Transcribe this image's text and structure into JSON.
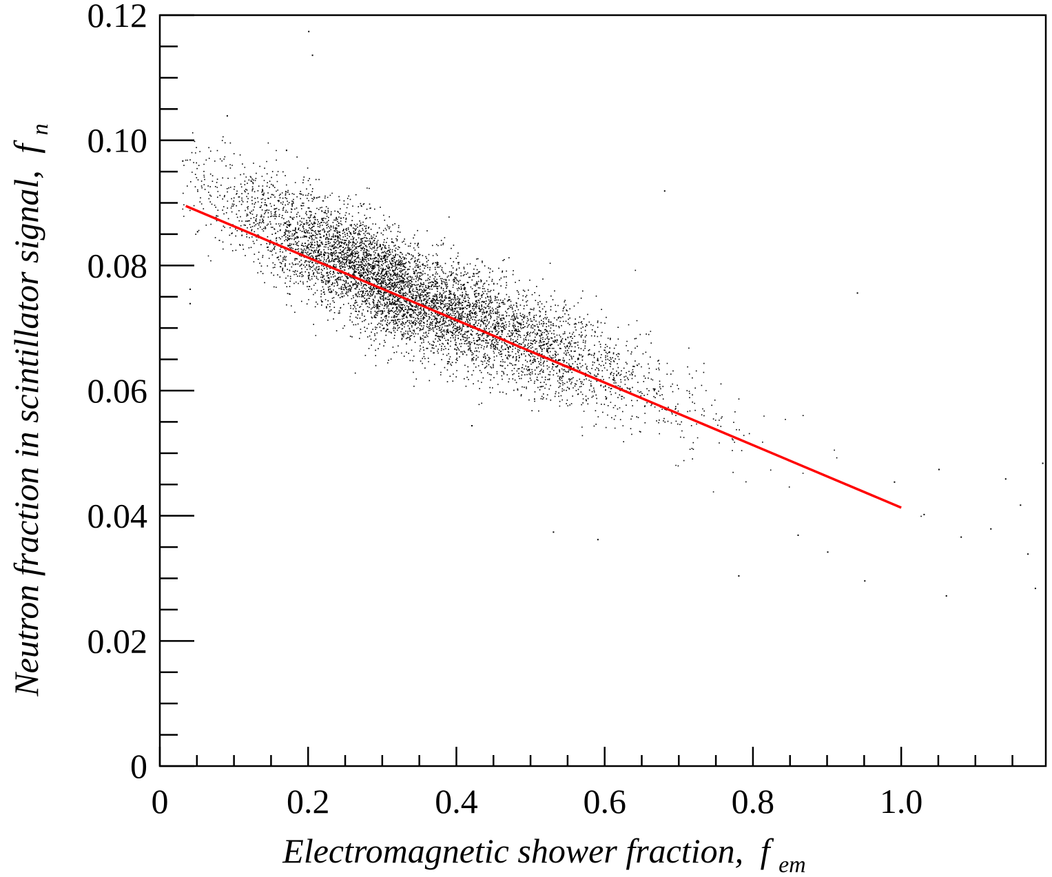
{
  "chart_data": {
    "type": "scatter",
    "xlabel": "Electromagnetic shower fraction,",
    "xlabel_symbol": "f",
    "xlabel_subscript": "em",
    "ylabel": "Neutron fraction in scintillator signal,",
    "ylabel_symbol": "f",
    "ylabel_subscript": "n",
    "xlim": [
      0,
      1.195
    ],
    "ylim": [
      0,
      0.12
    ],
    "x_ticks": [
      {
        "value": 0,
        "label": "0"
      },
      {
        "value": 0.2,
        "label": "0.2"
      },
      {
        "value": 0.4,
        "label": "0.4"
      },
      {
        "value": 0.6,
        "label": "0.6"
      },
      {
        "value": 0.8,
        "label": "0.8"
      },
      {
        "value": 1.0,
        "label": "1.0"
      }
    ],
    "y_ticks": [
      {
        "value": 0,
        "label": "0"
      },
      {
        "value": 0.02,
        "label": "0.02"
      },
      {
        "value": 0.04,
        "label": "0.04"
      },
      {
        "value": 0.06,
        "label": "0.06"
      },
      {
        "value": 0.08,
        "label": "0.08"
      },
      {
        "value": 0.1,
        "label": "0.10"
      },
      {
        "value": 0.12,
        "label": "0.12"
      }
    ],
    "x_minor_step": 0.05,
    "y_minor_step": 0.005,
    "grid": false,
    "legend": "none",
    "scatter_color": "#000000",
    "fit_color": "#ff0000",
    "scatter_distribution": {
      "mean_x": 0.33,
      "mean_y": 0.0755,
      "sd_x": 0.13,
      "sd_y": 0.0085,
      "correlation": -0.87,
      "point_count": 60000
    },
    "series": [
      {
        "kind": "fit-line",
        "x": [
          0.035,
          1.0
        ],
        "y": [
          0.0895,
          0.0413
        ]
      }
    ],
    "outliers": [
      [
        0.2,
        0.1175
      ],
      [
        0.205,
        0.1137
      ],
      [
        0.09,
        0.104
      ],
      [
        0.17,
        0.0985
      ],
      [
        0.03,
        0.0968
      ],
      [
        0.68,
        0.092
      ],
      [
        0.94,
        0.0757
      ],
      [
        0.53,
        0.0375
      ],
      [
        0.59,
        0.0363
      ],
      [
        0.78,
        0.0305
      ],
      [
        0.95,
        0.0297
      ],
      [
        1.06,
        0.0273
      ],
      [
        1.18,
        0.0285
      ],
      [
        1.19,
        0.0485
      ],
      [
        1.16,
        0.0418
      ],
      [
        1.12,
        0.038
      ],
      [
        1.03,
        0.0403
      ],
      [
        1.08,
        0.0367
      ],
      [
        1.17,
        0.034
      ],
      [
        1.14,
        0.046
      ],
      [
        1.05,
        0.0475
      ],
      [
        0.99,
        0.0455
      ],
      [
        0.9,
        0.0343
      ],
      [
        0.86,
        0.037
      ],
      [
        0.04,
        0.0763
      ],
      [
        0.05,
        0.0855
      ],
      [
        0.04,
        0.074
      ],
      [
        0.42,
        0.0545
      ]
    ]
  }
}
